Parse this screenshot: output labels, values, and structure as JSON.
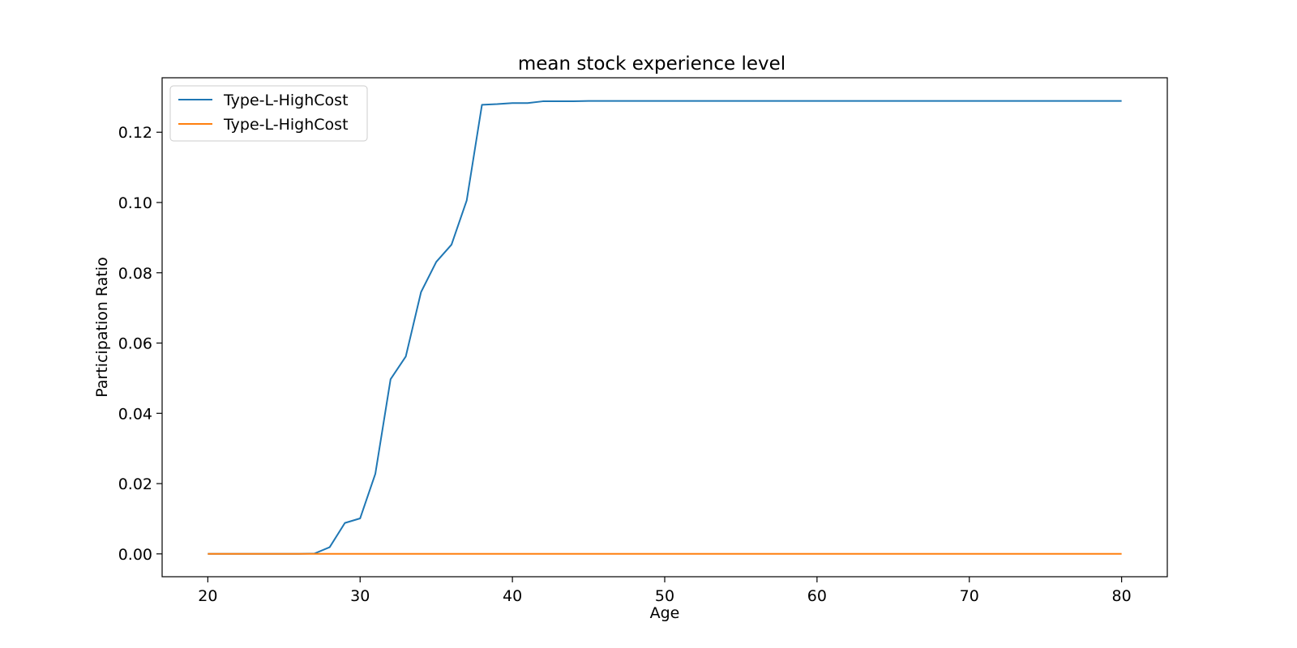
{
  "chart_data": {
    "type": "line",
    "title": "mean stock experience level",
    "xlabel": "Age",
    "ylabel": "Participation Ratio",
    "xlim": [
      17,
      83
    ],
    "ylim": [
      -0.0065,
      0.1355
    ],
    "xticks": [
      20,
      30,
      40,
      50,
      60,
      70,
      80
    ],
    "yticks": [
      0.0,
      0.02,
      0.04,
      0.06,
      0.08,
      0.1,
      0.12
    ],
    "grid": false,
    "legend_position": "top-left",
    "x": [
      20,
      21,
      22,
      23,
      24,
      25,
      26,
      27,
      28,
      29,
      30,
      31,
      32,
      33,
      34,
      35,
      36,
      37,
      38,
      39,
      40,
      41,
      42,
      43,
      44,
      45,
      46,
      47,
      48,
      49,
      50,
      51,
      52,
      53,
      54,
      55,
      56,
      57,
      58,
      59,
      60,
      61,
      62,
      63,
      64,
      65,
      66,
      67,
      68,
      69,
      70,
      71,
      72,
      73,
      74,
      75,
      76,
      77,
      78,
      79,
      80
    ],
    "series": [
      {
        "name": "Type-L-HighCost",
        "color": "#1f77b4",
        "values": [
          0,
          0,
          0,
          0,
          0,
          0,
          0,
          0.0001,
          0.0019,
          0.0088,
          0.0101,
          0.0228,
          0.0497,
          0.0562,
          0.0745,
          0.0831,
          0.088,
          0.1006,
          0.1278,
          0.128,
          0.1283,
          0.1283,
          0.1288,
          0.1288,
          0.1288,
          0.1289,
          0.1289,
          0.1289,
          0.1289,
          0.1289,
          0.1289,
          0.1289,
          0.1289,
          0.1289,
          0.1289,
          0.1289,
          0.1289,
          0.1289,
          0.1289,
          0.1289,
          0.1289,
          0.1289,
          0.1289,
          0.1289,
          0.1289,
          0.1289,
          0.1289,
          0.1289,
          0.1289,
          0.1289,
          0.1289,
          0.1289,
          0.1289,
          0.1289,
          0.1289,
          0.1289,
          0.1289,
          0.1289,
          0.1289,
          0.1289,
          0.1289
        ]
      },
      {
        "name": "Type-L-HighCost",
        "color": "#ff7f0e",
        "values": [
          0,
          0,
          0,
          0,
          0,
          0,
          0,
          0,
          0,
          0,
          0,
          0,
          0,
          0,
          0,
          0,
          0,
          0,
          0,
          0,
          0,
          0,
          0,
          0,
          0,
          0,
          0,
          0,
          0,
          0,
          0,
          0,
          0,
          0,
          0,
          0,
          0,
          0,
          0,
          0,
          0,
          0,
          0,
          0,
          0,
          0,
          0,
          0,
          0,
          0,
          0,
          0,
          0,
          0,
          0,
          0,
          0,
          0,
          0,
          0,
          0
        ]
      }
    ]
  }
}
